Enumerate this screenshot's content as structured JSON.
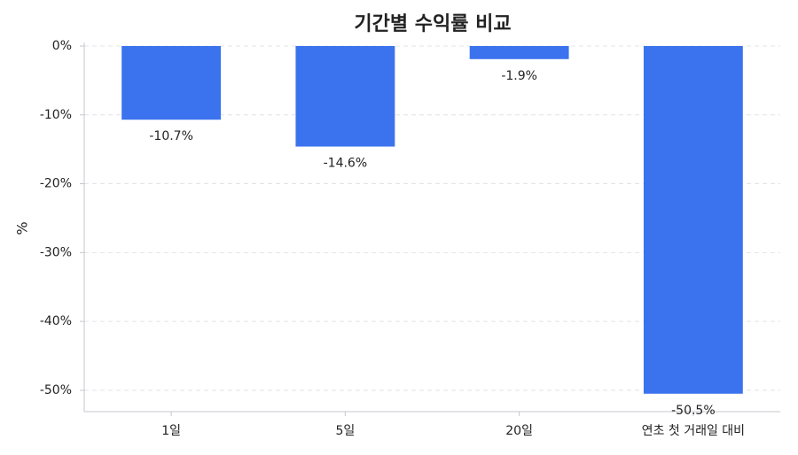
{
  "chart_data": {
    "type": "bar",
    "title": "기간별 수익률 비교",
    "y_label": "%",
    "categories": [
      "1일",
      "5일",
      "20일",
      "연초 첫 거래일 대비"
    ],
    "values": [
      -10.7,
      -14.6,
      -1.9,
      -50.5
    ],
    "value_labels": [
      "-10.7%",
      "-14.6%",
      "-1.9%",
      "-50.5%"
    ],
    "color": "#3b73ee",
    "ylim": [
      -53.1,
      0
    ],
    "yticks": [
      {
        "value": 0,
        "label": "0%"
      },
      {
        "value": -10,
        "label": "-10%"
      },
      {
        "value": -20,
        "label": "-20%"
      },
      {
        "value": -30,
        "label": "-30%"
      },
      {
        "value": -40,
        "label": "-40%"
      },
      {
        "value": -50,
        "label": "-50%"
      }
    ],
    "grid": true
  }
}
